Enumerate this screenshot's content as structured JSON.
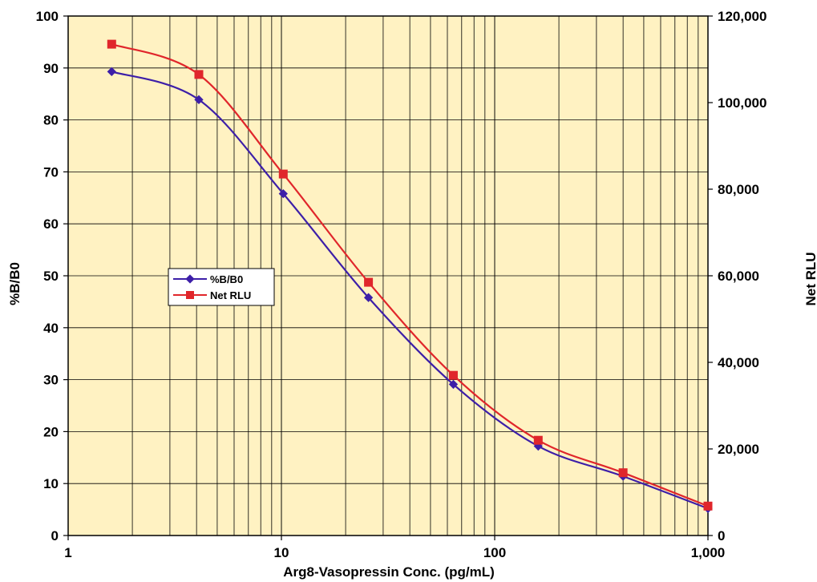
{
  "chart_data": {
    "type": "line",
    "title": "",
    "xlabel": "Arg8-Vasopressin Conc. (pg/mL)",
    "ylabel": "%B/B0",
    "y2label": "Net RLU",
    "x_scale": "log",
    "xlim": [
      1,
      1000
    ],
    "ylim": [
      0,
      100
    ],
    "y2lim": [
      0,
      120000
    ],
    "grid": true,
    "plot_background": "#FFF2C2",
    "x_tick_labels": [
      "1",
      "10",
      "100",
      "1,000"
    ],
    "y_tick_labels": [
      "0",
      "10",
      "20",
      "30",
      "40",
      "50",
      "60",
      "70",
      "80",
      "90",
      "100"
    ],
    "y2_tick_labels": [
      "0",
      "20,000",
      "40,000",
      "60,000",
      "80,000",
      "100,000",
      "120,000"
    ],
    "x": [
      1.6,
      4.1,
      10.2,
      25.6,
      64,
      160,
      400,
      1000
    ],
    "series": [
      {
        "name": "%B/B0",
        "axis": "left",
        "color": "#3D1FA8",
        "marker": "diamond",
        "values": [
          89.3,
          83.9,
          65.8,
          45.8,
          29.1,
          17.2,
          11.4,
          5.2
        ]
      },
      {
        "name": "Net RLU",
        "axis": "right",
        "color": "#E0262B",
        "marker": "square",
        "values": [
          113500,
          106500,
          83500,
          58500,
          37000,
          22000,
          14500,
          6800
        ]
      }
    ],
    "legend_position": "center-left"
  }
}
